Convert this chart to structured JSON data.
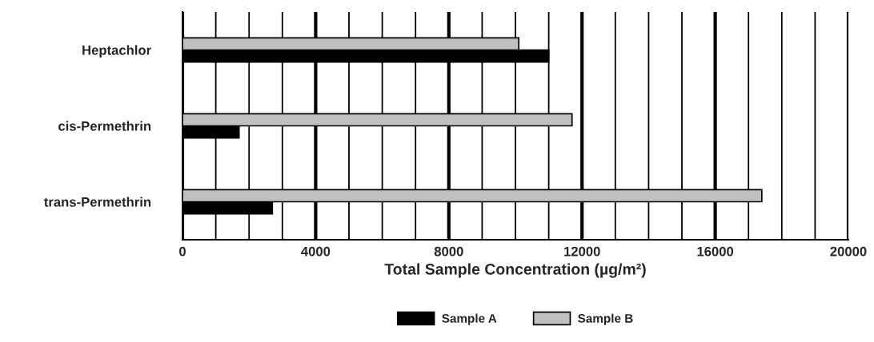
{
  "chart_data": {
    "type": "bar",
    "orientation": "horizontal",
    "xlabel": "Total Sample Concentration (µg/m²)",
    "categories": [
      "Heptachlor",
      "cis-Permethrin",
      "trans-Permethrin"
    ],
    "series": [
      {
        "name": "Sample A",
        "color": "#000000",
        "values": [
          11000,
          1700,
          2700
        ]
      },
      {
        "name": "Sample B",
        "color": "#c0c0c0",
        "values": [
          10100,
          11700,
          17400
        ]
      }
    ],
    "xlim": [
      0,
      20000
    ],
    "xticks": [
      0,
      {
        "value": 1000,
        "label": null
      },
      {
        "value": 2000,
        "label": null
      },
      {
        "value": 3000,
        "label": null
      },
      4000,
      {
        "value": 5000,
        "label": null
      },
      {
        "value": 6000,
        "label": null
      },
      {
        "value": 7000,
        "label": null
      },
      8000,
      {
        "value": 9000,
        "label": null
      },
      {
        "value": 10000,
        "label": null
      },
      {
        "value": 11000,
        "label": null
      },
      12000,
      {
        "value": 13000,
        "label": null
      },
      {
        "value": 14000,
        "label": null
      },
      {
        "value": 15000,
        "label": null
      },
      16000,
      {
        "value": 17000,
        "label": null
      },
      {
        "value": 18000,
        "label": null
      },
      {
        "value": 19000,
        "label": null
      },
      20000
    ],
    "grid": "x",
    "legend": "bottom"
  }
}
